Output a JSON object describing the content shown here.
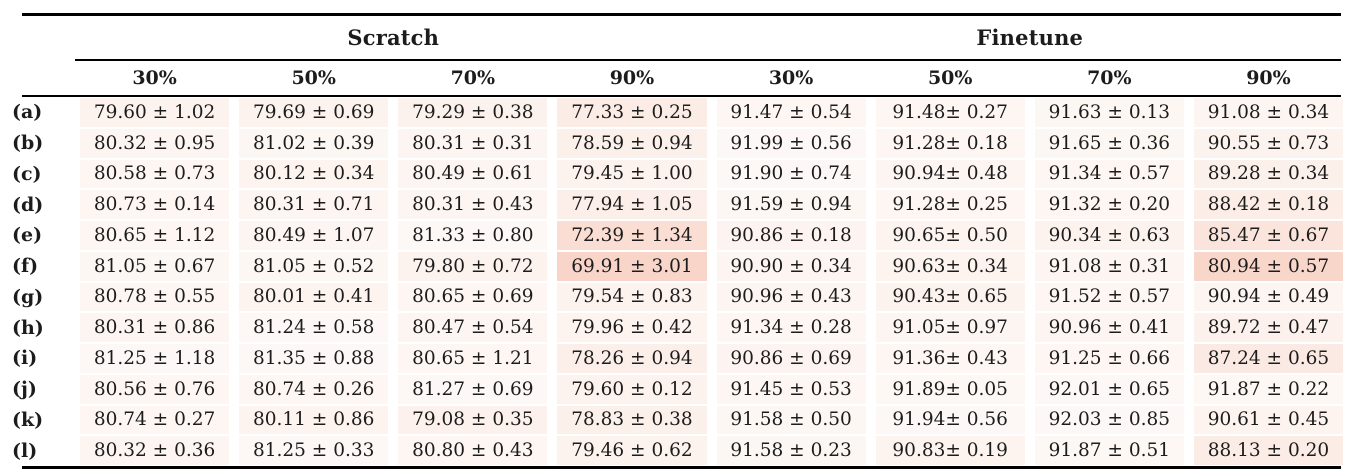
{
  "table": {
    "col_groups": [
      {
        "label": "Scratch"
      },
      {
        "label": "Finetune"
      }
    ],
    "sub_headers": [
      "30%",
      "50%",
      "70%",
      "90%",
      "30%",
      "50%",
      "70%",
      "90%"
    ],
    "rows": [
      {
        "label": "(a)",
        "cells": [
          "79.60 ± 1.02",
          "79.69 ± 0.69",
          "79.29 ± 0.38",
          "77.33 ± 0.25",
          "91.47 ± 0.54",
          "91.48± 0.27",
          "91.63 ± 0.13",
          "91.08 ± 0.34"
        ]
      },
      {
        "label": "(b)",
        "cells": [
          "80.32 ± 0.95",
          "81.02 ± 0.39",
          "80.31 ± 0.31",
          "78.59 ± 0.94",
          "91.99 ± 0.56",
          "91.28± 0.18",
          "91.65 ± 0.36",
          "90.55 ± 0.73"
        ]
      },
      {
        "label": "(c)",
        "cells": [
          "80.58 ± 0.73",
          "80.12 ± 0.34",
          "80.49 ± 0.61",
          "79.45 ± 1.00",
          "91.90 ± 0.74",
          "90.94± 0.48",
          "91.34 ± 0.57",
          "89.28 ± 0.34"
        ]
      },
      {
        "label": "(d)",
        "cells": [
          "80.73 ± 0.14",
          "80.31 ± 0.71",
          "80.31 ± 0.43",
          "77.94 ± 1.05",
          "91.59 ± 0.94",
          "91.28± 0.25",
          "91.32 ± 0.20",
          "88.42 ± 0.18"
        ]
      },
      {
        "label": "(e)",
        "cells": [
          "80.65 ± 1.12",
          "80.49 ± 1.07",
          "81.33 ± 0.80",
          "72.39 ± 1.34",
          "90.86 ± 0.18",
          "90.65± 0.50",
          "90.34 ± 0.63",
          "85.47 ± 0.67"
        ]
      },
      {
        "label": "(f)",
        "cells": [
          "81.05 ± 0.67",
          "81.05 ± 0.52",
          "79.80 ± 0.72",
          "69.91 ± 3.01",
          "90.90 ± 0.34",
          "90.63± 0.34",
          "91.08 ± 0.31",
          "80.94 ± 0.57"
        ]
      },
      {
        "label": "(g)",
        "cells": [
          "80.78 ± 0.55",
          "80.01 ± 0.41",
          "80.65 ± 0.69",
          "79.54 ± 0.83",
          "90.96 ± 0.43",
          "90.43± 0.65",
          "91.52 ± 0.57",
          "90.94 ± 0.49"
        ]
      },
      {
        "label": "(h)",
        "cells": [
          "80.31 ± 0.86",
          "81.24 ± 0.58",
          "80.47 ± 0.54",
          "79.96 ± 0.42",
          "91.34 ± 0.28",
          "91.05± 0.97",
          "90.96 ± 0.41",
          "89.72 ± 0.47"
        ]
      },
      {
        "label": "(i)",
        "cells": [
          "81.25 ± 1.18",
          "81.35 ± 0.88",
          "80.65 ± 1.21",
          "78.26 ± 0.94",
          "90.86 ± 0.69",
          "91.36± 0.43",
          "91.25 ± 0.66",
          "87.24 ± 0.65"
        ]
      },
      {
        "label": "(j)",
        "cells": [
          "80.56 ± 0.76",
          "80.74 ± 0.26",
          "81.27 ± 0.69",
          "79.60 ± 0.12",
          "91.45 ± 0.53",
          "91.89± 0.05",
          "92.01 ± 0.65",
          "91.87 ± 0.22"
        ]
      },
      {
        "label": "(k)",
        "cells": [
          "80.74 ± 0.27",
          "80.11 ± 0.86",
          "79.08 ± 0.35",
          "78.83 ± 0.38",
          "91.58 ± 0.50",
          "91.94± 0.56",
          "92.03 ± 0.85",
          "90.61 ± 0.45"
        ]
      },
      {
        "label": "(l)",
        "cells": [
          "80.32 ± 0.36",
          "81.25 ± 0.33",
          "80.80 ± 0.43",
          "79.46 ± 0.62",
          "91.58 ± 0.23",
          "90.83± 0.19",
          "91.87 ± 0.51",
          "88.13 ± 0.20"
        ]
      }
    ]
  },
  "heatmap": {
    "base_color": "#fdf8f5",
    "strong_color": "#f9d5c9",
    "group_max": [
      81.35,
      92.03
    ],
    "max_deficit": 11.44
  }
}
